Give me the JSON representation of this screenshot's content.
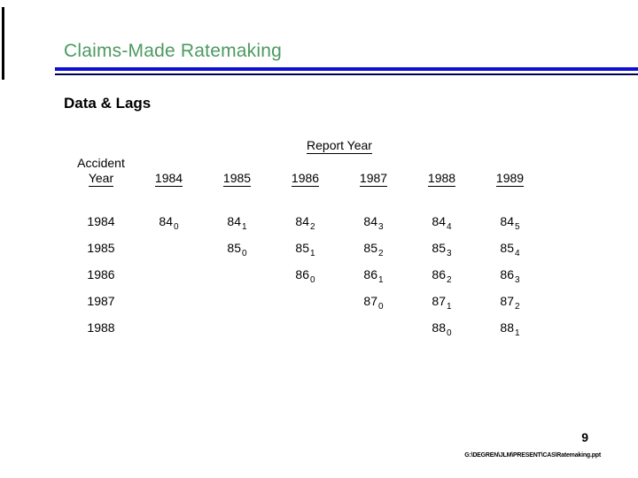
{
  "slide": {
    "title": "Claims-Made Ratemaking",
    "subtitle": "Data & Lags",
    "page_number": "9",
    "footer_path": "G:\\DEGREN\\JLM\\PRESENT\\CAS\\Ratemaking.ppt",
    "colors": {
      "title_green": "#4c9a60",
      "rule_blue": "#0d0ed6",
      "rule_navy": "#000055",
      "text_black": "#000000"
    }
  },
  "table": {
    "super_header": "Report Year",
    "row_header": {
      "line1": "Accident",
      "line2": "Year"
    },
    "report_years": [
      "1984",
      "1985",
      "1986",
      "1987",
      "1988",
      "1989"
    ],
    "accident_years": [
      "1984",
      "1985",
      "1986",
      "1987",
      "1988"
    ],
    "cells": [
      [
        {
          "base": "84",
          "sub": "0"
        },
        {
          "base": "84",
          "sub": "1"
        },
        {
          "base": "84",
          "sub": "2"
        },
        {
          "base": "84",
          "sub": "3"
        },
        {
          "base": "84",
          "sub": "4"
        },
        {
          "base": "84",
          "sub": "5"
        }
      ],
      [
        null,
        {
          "base": "85",
          "sub": "0"
        },
        {
          "base": "85",
          "sub": "1"
        },
        {
          "base": "85",
          "sub": "2"
        },
        {
          "base": "85",
          "sub": "3"
        },
        {
          "base": "85",
          "sub": "4"
        }
      ],
      [
        null,
        null,
        {
          "base": "86",
          "sub": "0"
        },
        {
          "base": "86",
          "sub": "1"
        },
        {
          "base": "86",
          "sub": "2"
        },
        {
          "base": "86",
          "sub": "3"
        }
      ],
      [
        null,
        null,
        null,
        {
          "base": "87",
          "sub": "0"
        },
        {
          "base": "87",
          "sub": "1"
        },
        {
          "base": "87",
          "sub": "2"
        }
      ],
      [
        null,
        null,
        null,
        null,
        {
          "base": "88",
          "sub": "0"
        },
        {
          "base": "88",
          "sub": "1"
        }
      ]
    ]
  }
}
